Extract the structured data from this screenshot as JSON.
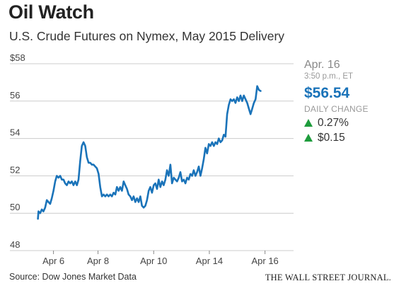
{
  "header": {
    "title": "Oil Watch",
    "subtitle": "U.S. Crude Futures on Nymex, May 2015 Delivery"
  },
  "readout": {
    "date": "Apr. 16",
    "time": "3:50 p.m., ET",
    "price": "$56.54",
    "daily_change_label": "DAILY CHANGE",
    "change_pct": "0.27%",
    "change_abs": "$0.15",
    "up_icon": "triangle-up-icon"
  },
  "footer": {
    "source": "Source: Dow Jones Market Data",
    "publisher": "THE WALL STREET JOURNAL."
  },
  "colors": {
    "line": "#1a73b9",
    "grid": "#cccccc",
    "price": "#1a73b9",
    "up": "#1e9c3c"
  },
  "chart_data": {
    "type": "line",
    "title": "Oil Watch",
    "subtitle": "U.S. Crude Futures on Nymex, May 2015 Delivery",
    "xlabel": "",
    "ylabel": "",
    "ylim": [
      48,
      58
    ],
    "yticks": [
      48,
      50,
      52,
      54,
      56,
      58
    ],
    "ytick_labels": [
      "48",
      "50",
      "52",
      "54",
      "56",
      "$58"
    ],
    "xlim": [
      0,
      46
    ],
    "xticks": [
      {
        "x": 3,
        "label": "Apr 6"
      },
      {
        "x": 11,
        "label": "Apr 8"
      },
      {
        "x": 21,
        "label": "Apr 10"
      },
      {
        "x": 31,
        "label": "Apr 14"
      },
      {
        "x": 41,
        "label": "Apr 16"
      }
    ],
    "grid": true,
    "series": [
      {
        "points": [
          [
            0.2,
            49.7
          ],
          [
            0.3,
            50.1
          ],
          [
            0.6,
            50.0
          ],
          [
            0.9,
            50.2
          ],
          [
            1.2,
            50.1
          ],
          [
            1.5,
            50.3
          ],
          [
            1.8,
            50.7
          ],
          [
            2.1,
            50.6
          ],
          [
            2.4,
            50.5
          ],
          [
            2.7,
            50.8
          ],
          [
            3.0,
            51.2
          ],
          [
            3.3,
            51.7
          ],
          [
            3.6,
            52.0
          ],
          [
            3.9,
            51.9
          ],
          [
            4.2,
            52.0
          ],
          [
            4.5,
            51.8
          ],
          [
            4.8,
            51.8
          ],
          [
            5.1,
            51.6
          ],
          [
            5.4,
            51.5
          ],
          [
            5.7,
            51.7
          ],
          [
            6.0,
            51.6
          ],
          [
            6.3,
            51.7
          ],
          [
            6.6,
            51.5
          ],
          [
            6.9,
            51.7
          ],
          [
            7.2,
            51.5
          ],
          [
            7.5,
            51.8
          ],
          [
            7.8,
            52.8
          ],
          [
            8.1,
            53.6
          ],
          [
            8.4,
            53.8
          ],
          [
            8.7,
            53.6
          ],
          [
            9.0,
            53.0
          ],
          [
            9.3,
            52.7
          ],
          [
            9.6,
            52.7
          ],
          [
            9.9,
            52.6
          ],
          [
            10.2,
            52.6
          ],
          [
            10.5,
            52.5
          ],
          [
            10.8,
            52.4
          ],
          [
            11.1,
            52.1
          ],
          [
            11.4,
            51.4
          ],
          [
            11.7,
            50.9
          ],
          [
            12.0,
            51.0
          ],
          [
            12.3,
            50.9
          ],
          [
            12.6,
            51.0
          ],
          [
            12.9,
            50.9
          ],
          [
            13.2,
            51.0
          ],
          [
            13.5,
            50.9
          ],
          [
            13.8,
            51.1
          ],
          [
            14.1,
            51.0
          ],
          [
            14.4,
            51.4
          ],
          [
            14.7,
            51.2
          ],
          [
            15.0,
            51.4
          ],
          [
            15.3,
            51.2
          ],
          [
            15.6,
            51.7
          ],
          [
            15.9,
            51.5
          ],
          [
            16.2,
            51.3
          ],
          [
            16.5,
            51.0
          ],
          [
            16.8,
            50.9
          ],
          [
            17.1,
            50.7
          ],
          [
            17.4,
            50.9
          ],
          [
            17.7,
            50.6
          ],
          [
            18.0,
            50.8
          ],
          [
            18.3,
            50.6
          ],
          [
            18.6,
            50.9
          ],
          [
            18.9,
            50.4
          ],
          [
            19.2,
            50.3
          ],
          [
            19.5,
            50.4
          ],
          [
            19.8,
            50.7
          ],
          [
            20.1,
            51.2
          ],
          [
            20.4,
            51.4
          ],
          [
            20.7,
            51.1
          ],
          [
            21.0,
            51.5
          ],
          [
            21.3,
            51.6
          ],
          [
            21.6,
            51.3
          ],
          [
            21.9,
            51.8
          ],
          [
            22.2,
            51.4
          ],
          [
            22.5,
            51.7
          ],
          [
            22.8,
            51.5
          ],
          [
            23.1,
            51.8
          ],
          [
            23.4,
            52.3
          ],
          [
            23.7,
            52.0
          ],
          [
            24.0,
            52.6
          ],
          [
            24.3,
            51.6
          ],
          [
            24.6,
            51.9
          ],
          [
            24.9,
            51.8
          ],
          [
            25.2,
            51.7
          ],
          [
            25.5,
            51.9
          ],
          [
            25.8,
            52.2
          ],
          [
            26.1,
            51.7
          ],
          [
            26.4,
            51.8
          ],
          [
            26.7,
            51.6
          ],
          [
            27.0,
            51.9
          ],
          [
            27.3,
            51.8
          ],
          [
            27.6,
            52.1
          ],
          [
            27.9,
            52.0
          ],
          [
            28.2,
            52.3
          ],
          [
            28.5,
            52.0
          ],
          [
            28.8,
            52.2
          ],
          [
            29.1,
            52.5
          ],
          [
            29.4,
            52.0
          ],
          [
            29.7,
            52.4
          ],
          [
            30.0,
            52.9
          ],
          [
            30.3,
            53.5
          ],
          [
            30.6,
            53.2
          ],
          [
            30.9,
            53.7
          ],
          [
            31.2,
            53.6
          ],
          [
            31.5,
            53.8
          ],
          [
            31.8,
            53.6
          ],
          [
            32.1,
            53.8
          ],
          [
            32.4,
            53.7
          ],
          [
            32.7,
            54.0
          ],
          [
            33.0,
            53.8
          ],
          [
            33.3,
            53.9
          ],
          [
            33.6,
            54.2
          ],
          [
            33.9,
            54.1
          ],
          [
            34.2,
            55.3
          ],
          [
            34.5,
            55.8
          ],
          [
            34.8,
            56.1
          ],
          [
            35.1,
            56.0
          ],
          [
            35.4,
            56.1
          ],
          [
            35.7,
            55.9
          ],
          [
            36.0,
            56.2
          ],
          [
            36.3,
            56.0
          ],
          [
            36.6,
            56.3
          ],
          [
            36.9,
            56.0
          ],
          [
            37.2,
            56.3
          ],
          [
            37.5,
            56.1
          ],
          [
            37.8,
            55.9
          ],
          [
            38.1,
            55.6
          ],
          [
            38.4,
            55.3
          ],
          [
            38.7,
            55.6
          ],
          [
            39.0,
            55.9
          ],
          [
            39.3,
            56.1
          ],
          [
            39.6,
            56.8
          ],
          [
            39.9,
            56.6
          ],
          [
            40.2,
            56.54
          ]
        ]
      }
    ]
  }
}
